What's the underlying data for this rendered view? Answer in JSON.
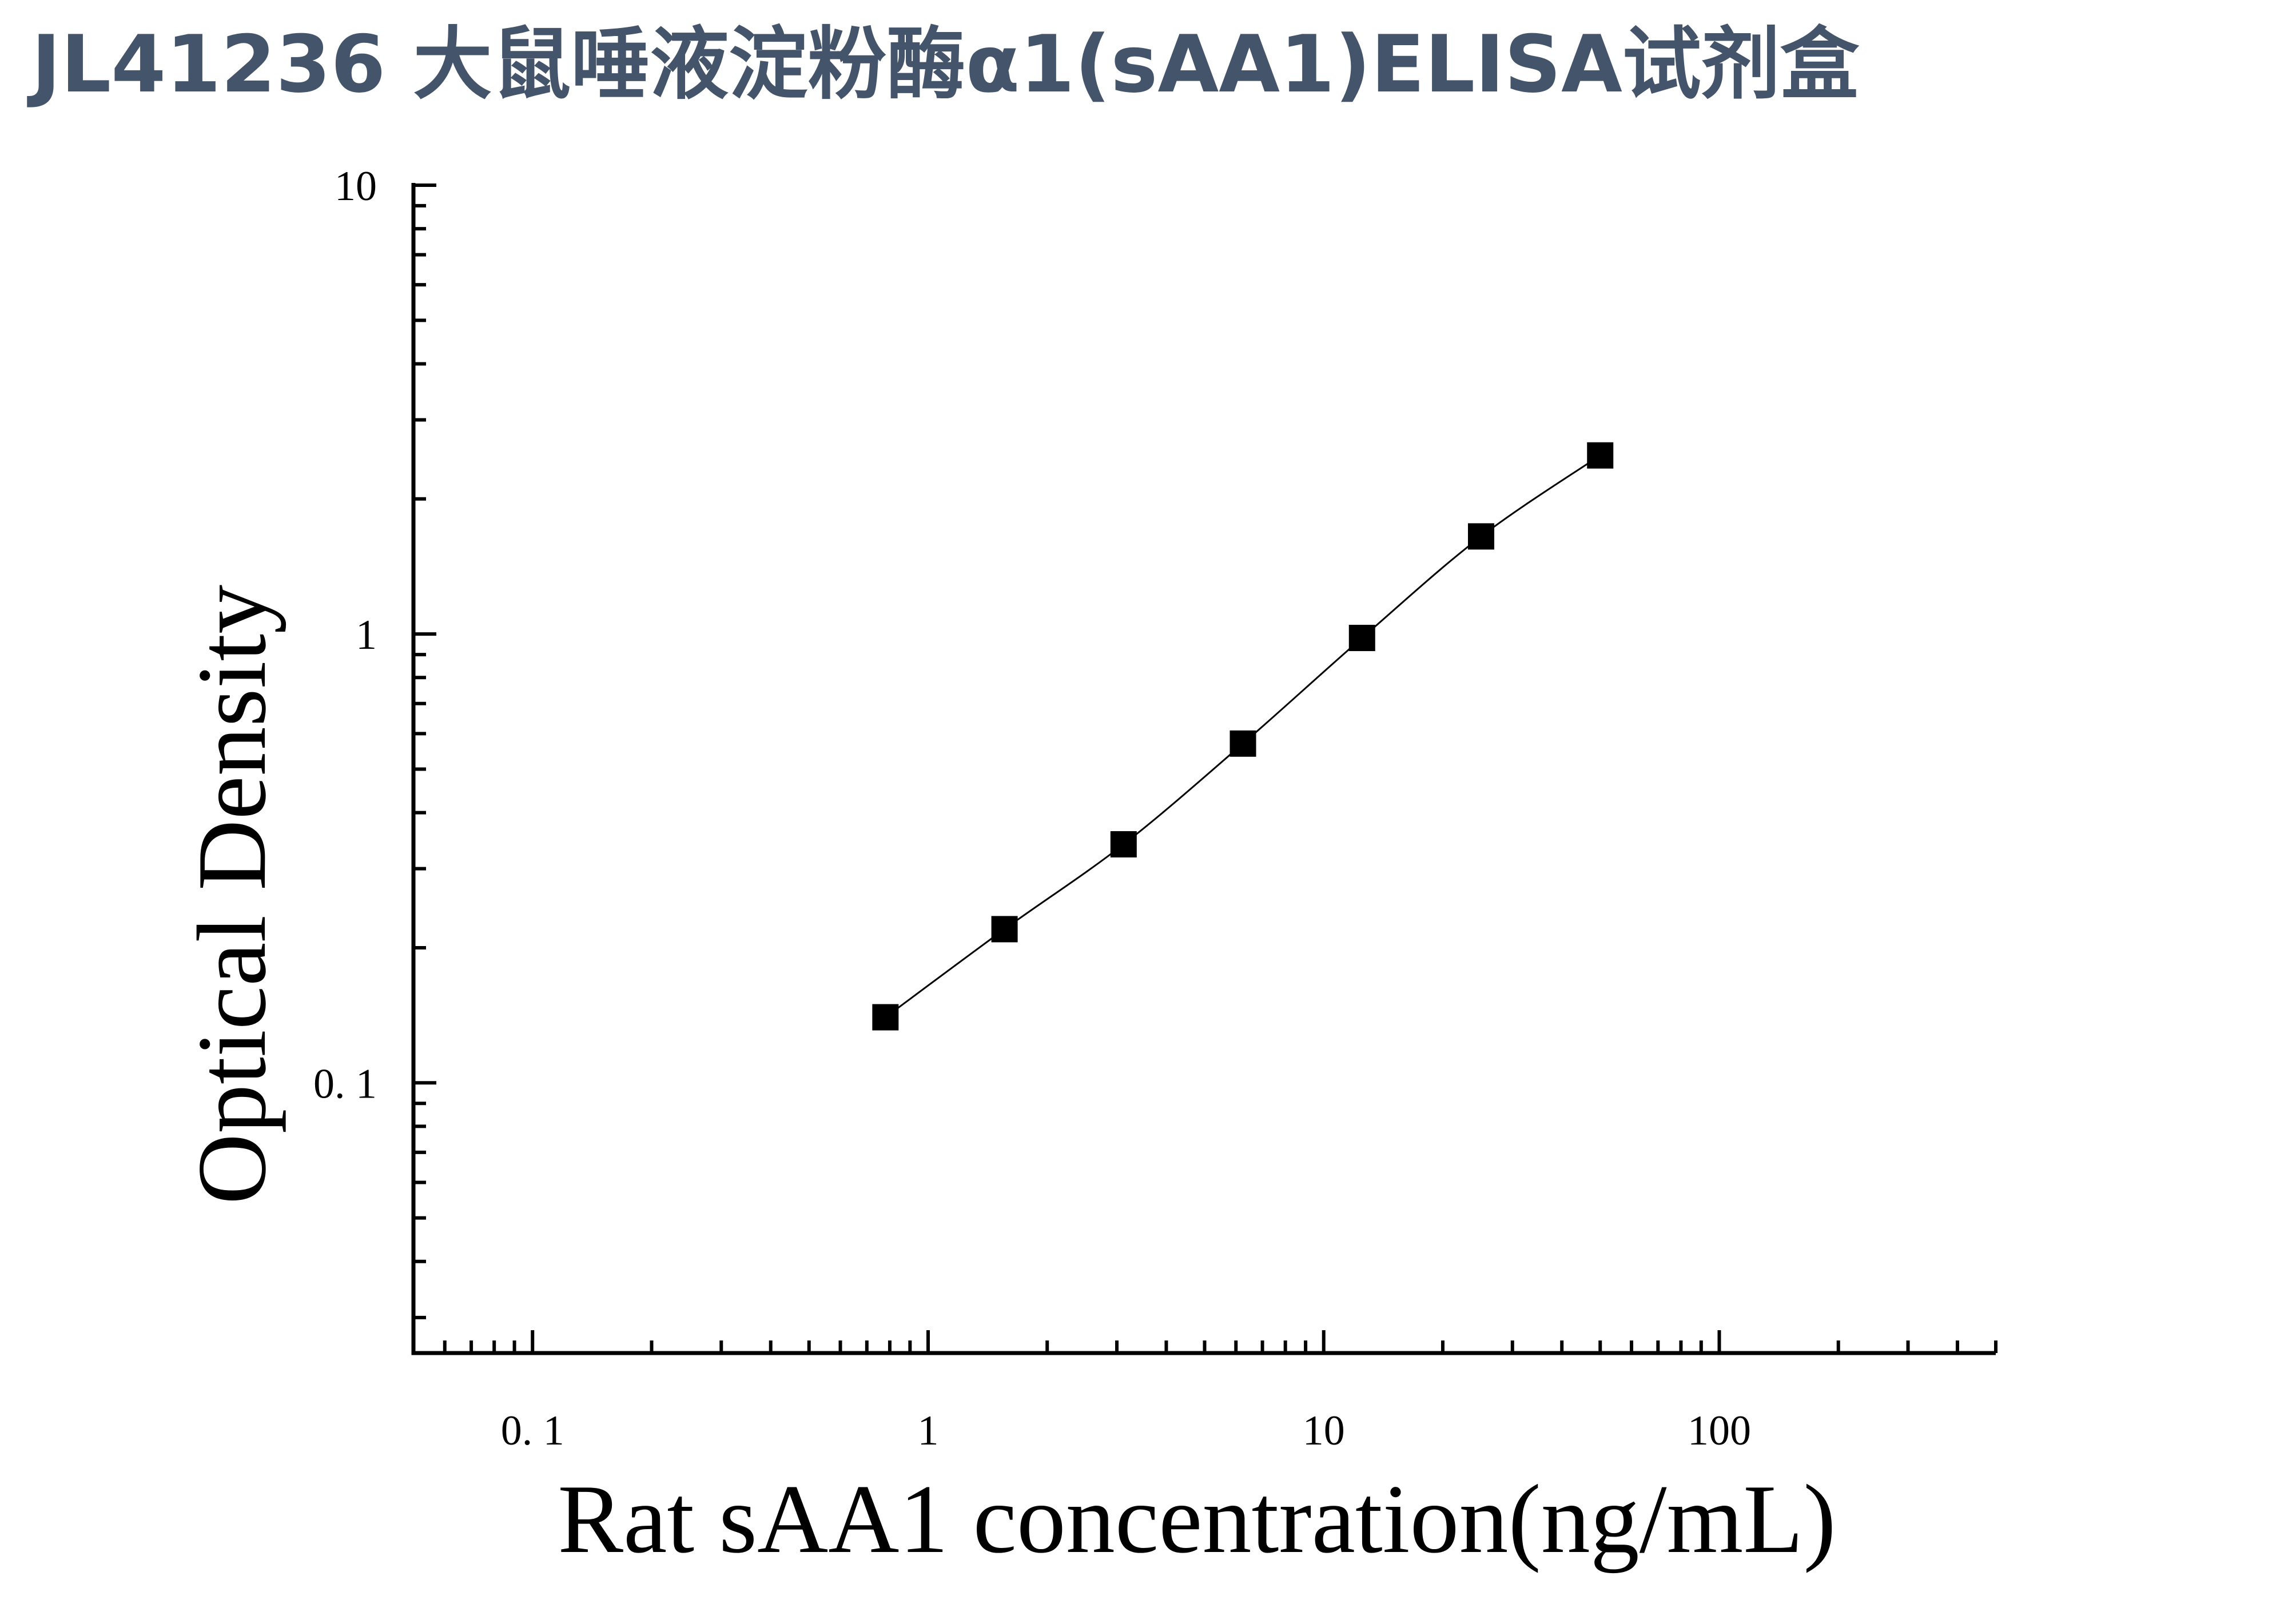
{
  "page": {
    "title": "JL41236 大鼠唾液淀粉酶α1(sAA1)ELISA试剂盒"
  },
  "colors": {
    "title": "#44546a",
    "ink": "#000000"
  },
  "chart_data": {
    "type": "scatter",
    "xlabel": "Rat sAA1 concentration(ng/mL)",
    "ylabel": "Optical Density",
    "xscale": "log",
    "yscale": "log",
    "xlim": [
      0.05,
      500
    ],
    "ylim": [
      0.025,
      10
    ],
    "xticks": [
      {
        "value": 0.1,
        "label": "0. 1"
      },
      {
        "value": 1,
        "label": "1"
      },
      {
        "value": 10,
        "label": "10"
      },
      {
        "value": 100,
        "label": "100"
      }
    ],
    "yticks": [
      {
        "value": 0.1,
        "label": "0. 1"
      },
      {
        "value": 1,
        "label": "1"
      },
      {
        "value": 10,
        "label": "10"
      }
    ],
    "grid": false,
    "legend": false,
    "marker": "square",
    "fit_line": true,
    "series": [
      {
        "x": [
          0.78,
          1.56,
          3.12,
          6.25,
          12.5,
          25,
          50
        ],
        "y": [
          0.14,
          0.22,
          0.34,
          0.57,
          0.98,
          1.65,
          2.5
        ]
      }
    ]
  }
}
